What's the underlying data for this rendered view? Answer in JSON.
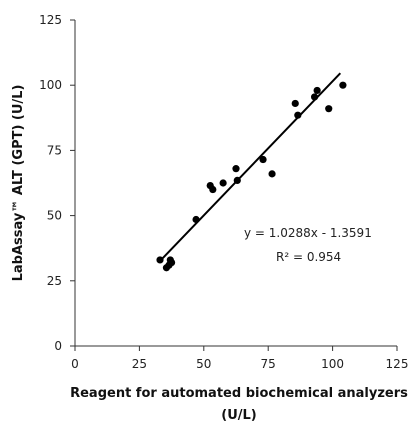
{
  "chart_data": {
    "type": "scatter",
    "x_title": "Reagent for automated biochemical analyzers",
    "x_unit": "(U/L)",
    "y_title": "LabAssay™ ALT (GPT) (U/L)",
    "x_ticks": [
      "0",
      "25",
      "50",
      "75",
      "100",
      "125"
    ],
    "y_ticks": [
      "0",
      "25",
      "50",
      "75",
      "100",
      "125"
    ],
    "xlim": [
      0,
      125
    ],
    "ylim": [
      0,
      125
    ],
    "grid": false,
    "points": [
      [
        33,
        33
      ],
      [
        35.5,
        30
      ],
      [
        36.5,
        31
      ],
      [
        37,
        33
      ],
      [
        37.5,
        32
      ],
      [
        47,
        48.5
      ],
      [
        52.5,
        61.5
      ],
      [
        53.5,
        60
      ],
      [
        57.5,
        62.5
      ],
      [
        62.5,
        68
      ],
      [
        63,
        63.5
      ],
      [
        73,
        71.5
      ],
      [
        76.5,
        66
      ],
      [
        85.5,
        93
      ],
      [
        86.5,
        88.5
      ],
      [
        93,
        95.5
      ],
      [
        94,
        98
      ],
      [
        98.5,
        91
      ],
      [
        104,
        100
      ]
    ],
    "trendline": {
      "slope": 1.0288,
      "intercept": -1.3591,
      "x_from": 34,
      "x_to": 103
    },
    "equation": "y = 1.0288x - 1.3591",
    "r2": "R² = 0.954"
  }
}
